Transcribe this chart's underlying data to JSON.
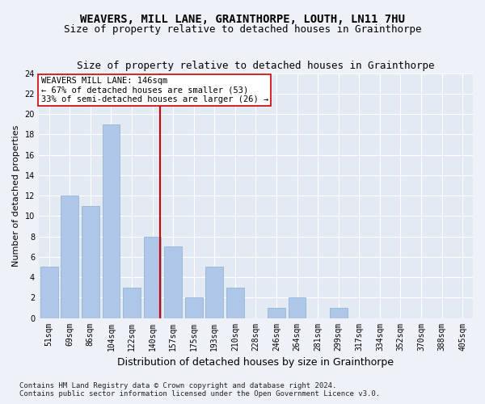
{
  "title": "WEAVERS, MILL LANE, GRAINTHORPE, LOUTH, LN11 7HU",
  "subtitle": "Size of property relative to detached houses in Grainthorpe",
  "xlabel": "Distribution of detached houses by size in Grainthorpe",
  "ylabel": "Number of detached properties",
  "categories": [
    "51sqm",
    "69sqm",
    "86sqm",
    "104sqm",
    "122sqm",
    "140sqm",
    "157sqm",
    "175sqm",
    "193sqm",
    "210sqm",
    "228sqm",
    "246sqm",
    "264sqm",
    "281sqm",
    "299sqm",
    "317sqm",
    "334sqm",
    "352sqm",
    "370sqm",
    "388sqm",
    "405sqm"
  ],
  "values": [
    5,
    12,
    11,
    19,
    3,
    8,
    7,
    2,
    5,
    3,
    0,
    1,
    2,
    0,
    1,
    0,
    0,
    0,
    0,
    0,
    0
  ],
  "bar_color": "#aec6e8",
  "bar_edge_color": "#8ab0d0",
  "ylim": [
    0,
    24
  ],
  "yticks": [
    0,
    2,
    4,
    6,
    8,
    10,
    12,
    14,
    16,
    18,
    20,
    22,
    24
  ],
  "annotation_line1": "WEAVERS MILL LANE: 146sqm",
  "annotation_line2": "← 67% of detached houses are smaller (53)",
  "annotation_line3": "33% of semi-detached houses are larger (26) →",
  "vline_color": "#cc0000",
  "annotation_box_color": "#ffffff",
  "background_color": "#eef2f8",
  "plot_background": "#e4eaf4",
  "grid_color": "#ffffff",
  "title_fontsize": 10,
  "subtitle_fontsize": 9,
  "tick_fontsize": 7,
  "ylabel_fontsize": 8,
  "xlabel_fontsize": 9,
  "annotation_fontsize": 7.5,
  "footer_fontsize": 6.5
}
